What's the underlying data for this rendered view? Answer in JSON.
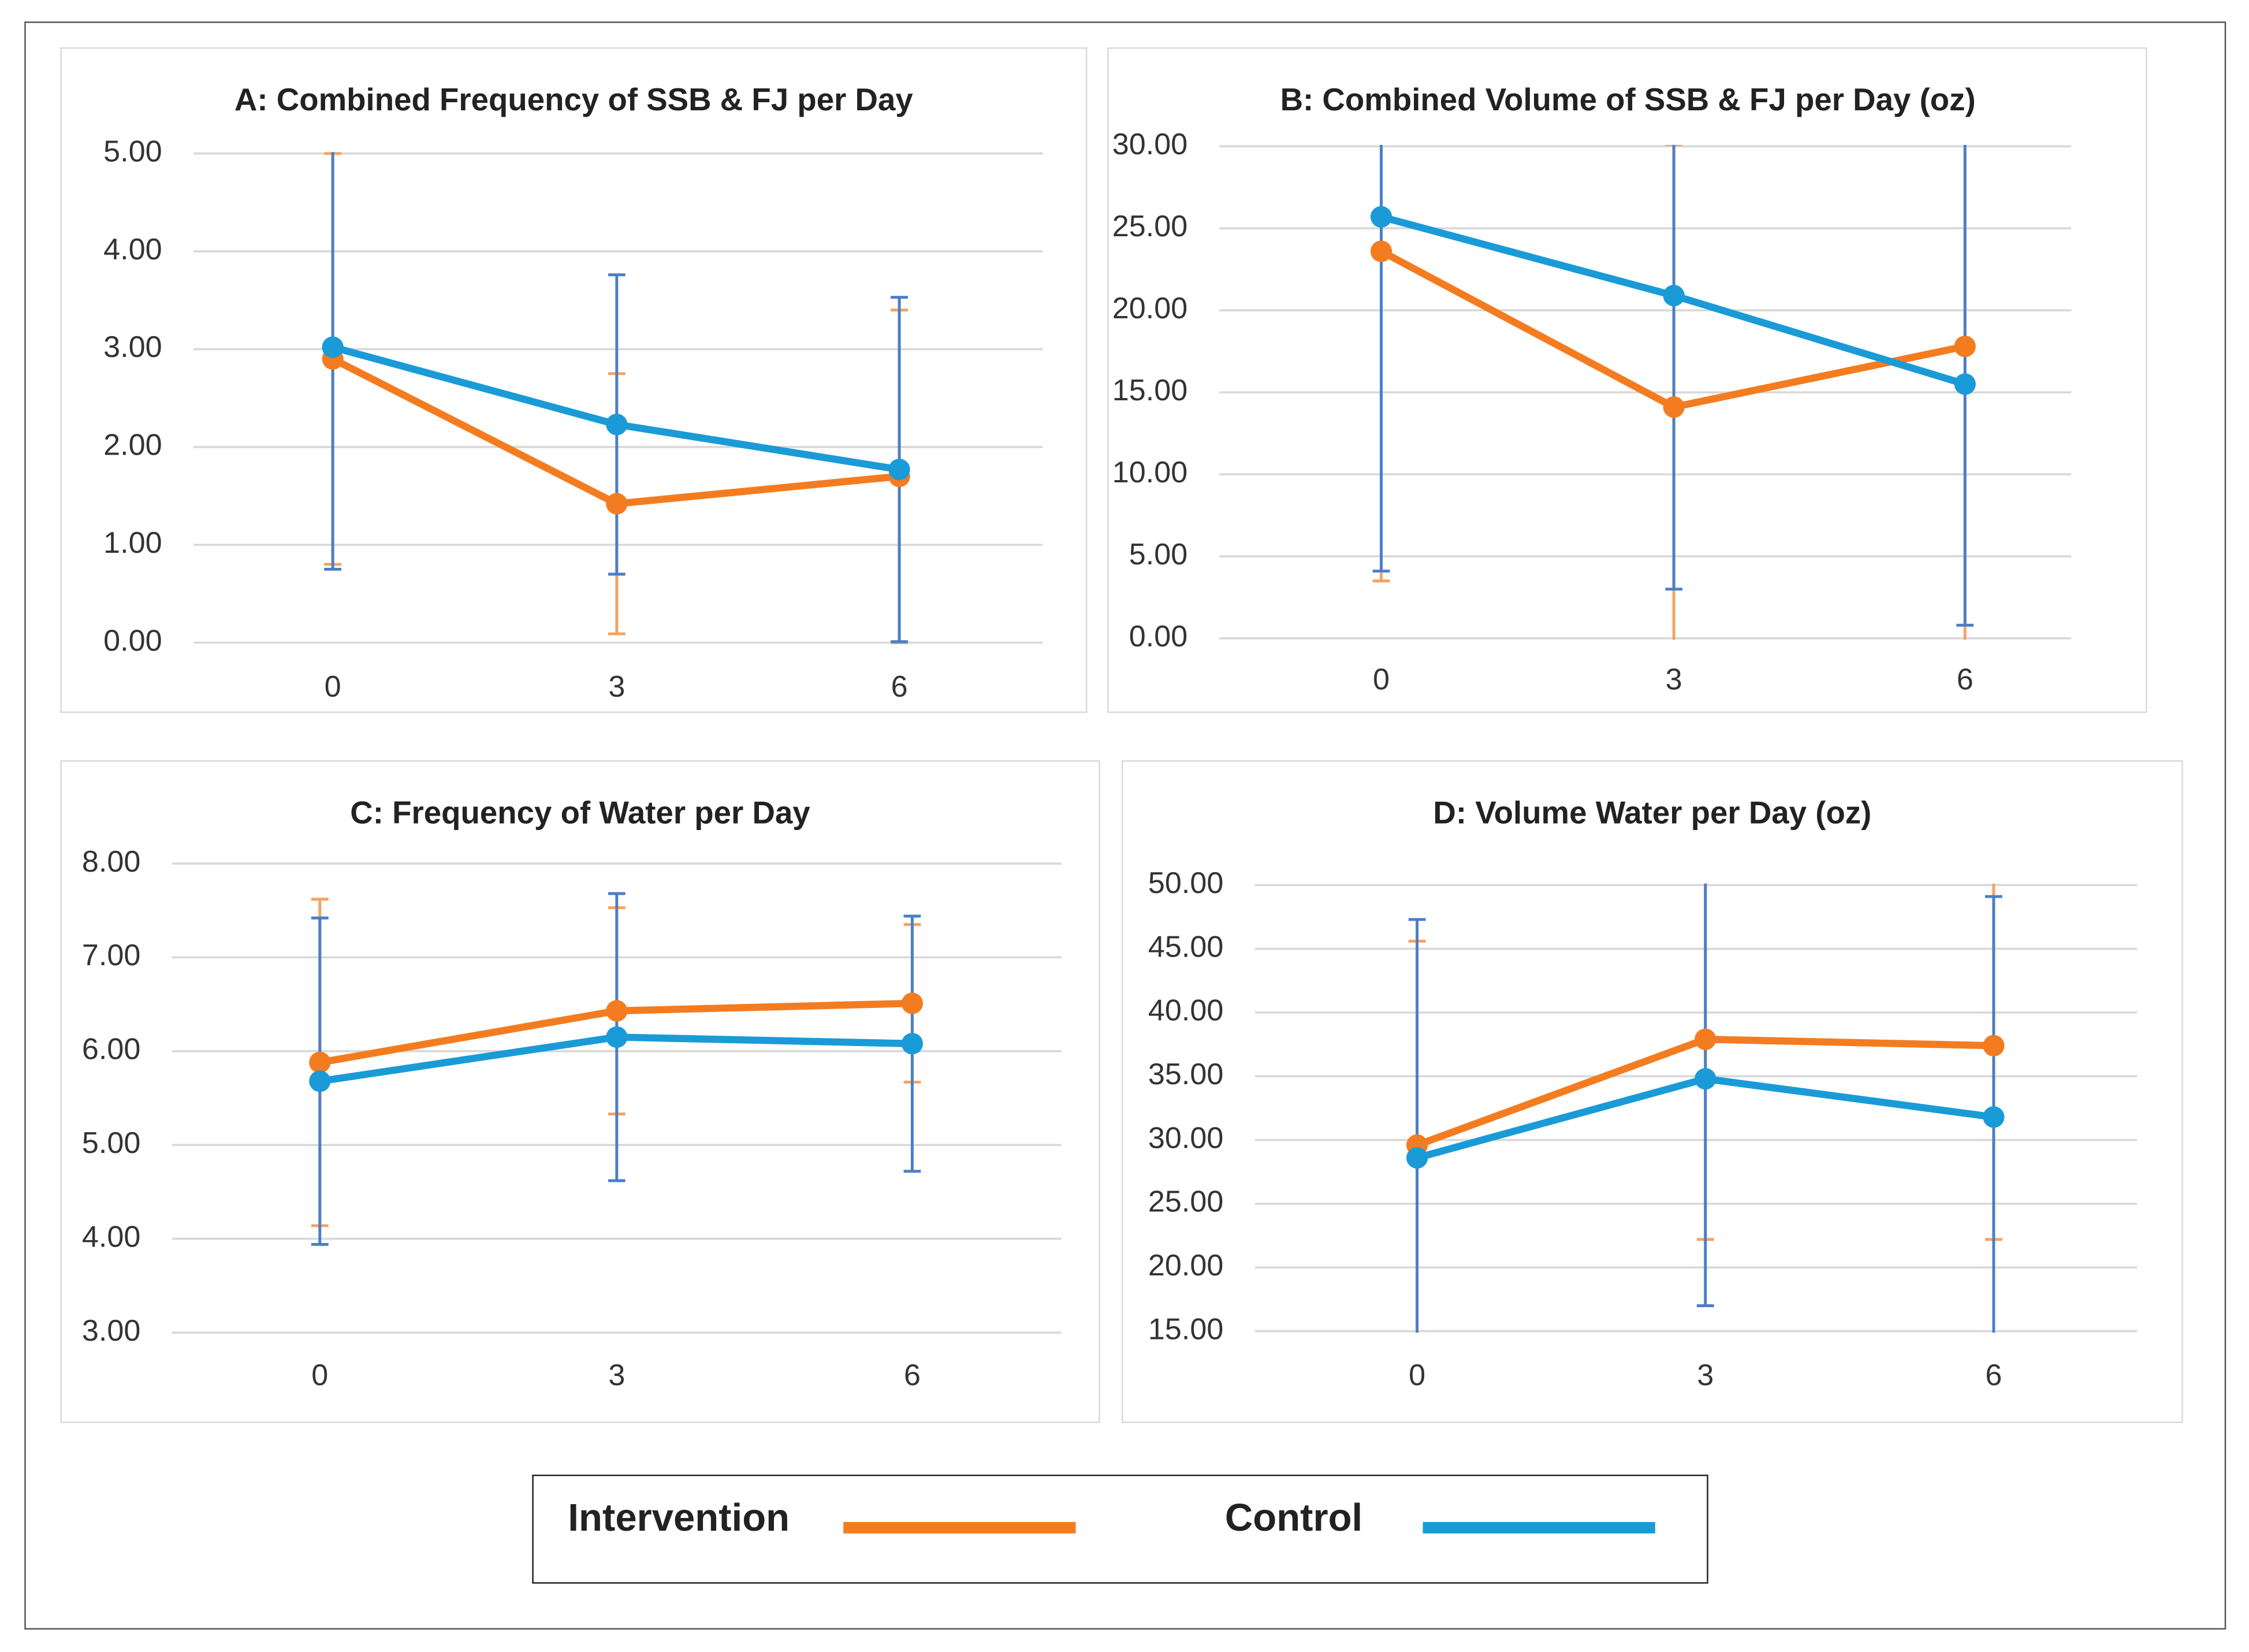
{
  "chart_data": [
    {
      "type": "line",
      "title": "A: Combined Frequency of SSB & FJ per Day",
      "categories": [
        "0",
        "3",
        "6"
      ],
      "ylim": [
        0,
        5
      ],
      "yticks": [
        {
          "value": 0,
          "label": "0.00"
        },
        {
          "value": 1,
          "label": "1.00"
        },
        {
          "value": 2,
          "label": "2.00"
        },
        {
          "value": 3,
          "label": "3.00"
        },
        {
          "value": 4,
          "label": "4.00"
        },
        {
          "value": 5,
          "label": "5.00"
        }
      ],
      "grid": true,
      "series": [
        {
          "name": "Intervention",
          "color": "#f47c20",
          "error_color": "#f4a261",
          "values": [
            2.9,
            1.42,
            1.7
          ],
          "errors": [
            2.1,
            1.33,
            1.7
          ]
        },
        {
          "name": "Control",
          "color": "#1a9bd7",
          "error_color": "#4a7fc8",
          "values": [
            3.02,
            2.23,
            1.77
          ],
          "errors": [
            2.27,
            1.53,
            1.76
          ]
        }
      ]
    },
    {
      "type": "line",
      "title": "B:  Combined Volume of SSB & FJ per Day (oz)",
      "categories": [
        "0",
        "3",
        "6"
      ],
      "ylim": [
        0,
        30
      ],
      "yticks": [
        {
          "value": 0,
          "label": "0.00"
        },
        {
          "value": 5,
          "label": "5.00"
        },
        {
          "value": 10,
          "label": "10.00"
        },
        {
          "value": 15,
          "label": "15.00"
        },
        {
          "value": 20,
          "label": "20.00"
        },
        {
          "value": 25,
          "label": "25.00"
        },
        {
          "value": 30,
          "label": "30.00"
        }
      ],
      "grid": true,
      "series": [
        {
          "name": "Intervention",
          "color": "#f47c20",
          "error_color": "#f4a261",
          "values": [
            23.6,
            14.1,
            17.8
          ],
          "errors": [
            20.1,
            16,
            18
          ]
        },
        {
          "name": "Control",
          "color": "#1a9bd7",
          "error_color": "#4a7fc8",
          "values": [
            25.7,
            20.9,
            15.5
          ],
          "errors": [
            21.6,
            17.9,
            14.7
          ]
        }
      ]
    },
    {
      "type": "line",
      "title": "C: Frequency of Water per Day",
      "categories": [
        "0",
        "3",
        "6"
      ],
      "ylim": [
        3,
        8
      ],
      "yticks": [
        {
          "value": 3,
          "label": "3.00"
        },
        {
          "value": 4,
          "label": "4.00"
        },
        {
          "value": 5,
          "label": "5.00"
        },
        {
          "value": 6,
          "label": "6.00"
        },
        {
          "value": 7,
          "label": "7.00"
        },
        {
          "value": 8,
          "label": "8.00"
        }
      ],
      "grid": true,
      "series": [
        {
          "name": "Intervention",
          "color": "#f47c20",
          "error_color": "#f4a261",
          "values": [
            5.88,
            6.43,
            6.51
          ],
          "errors": [
            1.74,
            1.1,
            0.84
          ]
        },
        {
          "name": "Control",
          "color": "#1a9bd7",
          "error_color": "#4a7fc8",
          "values": [
            5.68,
            6.15,
            6.08
          ],
          "errors": [
            1.74,
            1.53,
            1.36
          ]
        }
      ]
    },
    {
      "type": "line",
      "title": "D: Volume Water per Day (oz)",
      "categories": [
        "0",
        "3",
        "6"
      ],
      "ylim": [
        15,
        50
      ],
      "yticks": [
        {
          "value": 15,
          "label": "15.00"
        },
        {
          "value": 20,
          "label": "20.00"
        },
        {
          "value": 25,
          "label": "25.00"
        },
        {
          "value": 30,
          "label": "30.00"
        },
        {
          "value": 35,
          "label": "35.00"
        },
        {
          "value": 40,
          "label": "40.00"
        },
        {
          "value": 45,
          "label": "45.00"
        },
        {
          "value": 50,
          "label": "50.00"
        }
      ],
      "grid": true,
      "series": [
        {
          "name": "Intervention",
          "color": "#f47c20",
          "error_color": "#f4a261",
          "values": [
            29.6,
            37.9,
            37.4
          ],
          "errors": [
            16,
            15.7,
            15.2
          ]
        },
        {
          "name": "Control",
          "color": "#1a9bd7",
          "error_color": "#4a7fc8",
          "values": [
            28.6,
            34.8,
            31.8
          ],
          "errors": [
            18.7,
            17.8,
            17.3
          ]
        }
      ]
    }
  ]
}
